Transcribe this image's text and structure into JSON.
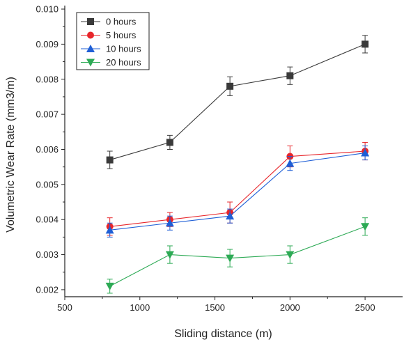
{
  "chart_data": {
    "type": "line",
    "xlabel": "Sliding distance (m)",
    "ylabel": "Volumetric Wear Rate (mm3/m)",
    "xlim": [
      500,
      2750
    ],
    "ylim": [
      0.0018,
      0.0101
    ],
    "x_ticks": [
      500,
      1000,
      1500,
      2000,
      2500
    ],
    "y_ticks": [
      0.002,
      0.003,
      0.004,
      0.005,
      0.006,
      0.007,
      0.008,
      0.009,
      0.01
    ],
    "x_tick_labels": [
      "500",
      "1000",
      "1500",
      "2000",
      "2500"
    ],
    "y_tick_labels": [
      "0.002",
      "0.003",
      "0.004",
      "0.005",
      "0.006",
      "0.007",
      "0.008",
      "0.009",
      "0.010"
    ],
    "grid": false,
    "legend_position": "top-left",
    "x": [
      800,
      1200,
      1600,
      2000,
      2500
    ],
    "series": [
      {
        "name": "0 hours",
        "color": "#3a3a3a",
        "marker": "square",
        "values": [
          0.0057,
          0.0062,
          0.0078,
          0.0081,
          0.009
        ],
        "errors": [
          0.00025,
          0.0002,
          0.00027,
          0.00025,
          0.00025
        ]
      },
      {
        "name": "5 hours",
        "color": "#e8262b",
        "marker": "circle",
        "values": [
          0.0038,
          0.004,
          0.0042,
          0.0058,
          0.00595
        ],
        "errors": [
          0.00025,
          0.0002,
          0.0003,
          0.0003,
          0.00025
        ]
      },
      {
        "name": "10 hours",
        "color": "#1f5fd6",
        "marker": "triangle-up",
        "values": [
          0.0037,
          0.0039,
          0.0041,
          0.0056,
          0.0059
        ],
        "errors": [
          0.0002,
          0.0002,
          0.0002,
          0.0002,
          0.0002
        ]
      },
      {
        "name": "20 hours",
        "color": "#2daa55",
        "marker": "triangle-down",
        "values": [
          0.0021,
          0.003,
          0.0029,
          0.003,
          0.0038
        ],
        "errors": [
          0.0002,
          0.00025,
          0.00025,
          0.00025,
          0.00025
        ]
      }
    ]
  }
}
